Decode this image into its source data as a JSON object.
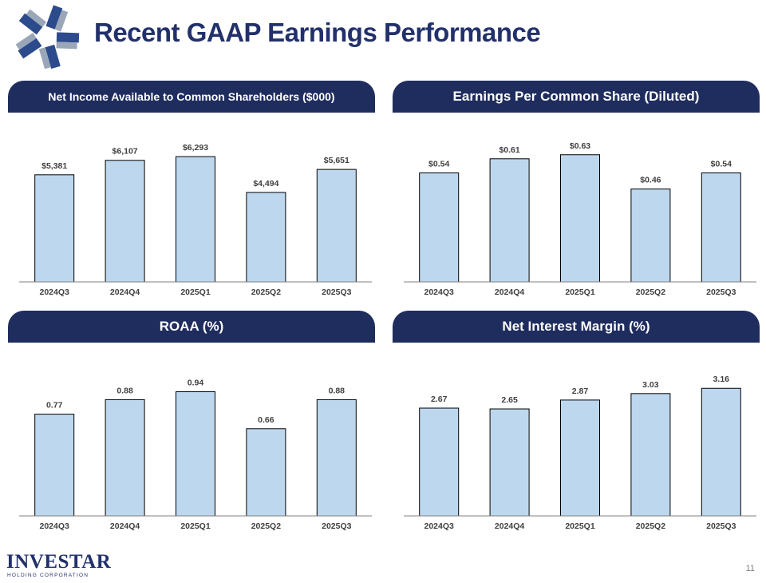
{
  "page": {
    "title": "Recent GAAP Earnings Performance",
    "page_number": "11",
    "brand": {
      "name": "INVESTAR",
      "subtitle": "HOLDING CORPORATION",
      "color": "#22306b"
    }
  },
  "colors": {
    "header_bg": "#1f2d5e",
    "bar_fill": "#bdd7ee",
    "title": "#22306b"
  },
  "chart_data": [
    {
      "type": "bar",
      "title": "Net Income Available to Common Shareholders ($000)",
      "categories": [
        "2024Q3",
        "2024Q4",
        "2025Q1",
        "2025Q2",
        "2025Q3"
      ],
      "values": [
        5381,
        6107,
        6293,
        4494,
        5651
      ],
      "value_labels": [
        "$5,381",
        "$6,107",
        "$6,293",
        "$4,494",
        "$5,651"
      ],
      "ylim": [
        0,
        7300
      ],
      "xlabel": "",
      "ylabel": ""
    },
    {
      "type": "bar",
      "title": "Earnings Per Common Share (Diluted)",
      "categories": [
        "2024Q3",
        "2024Q4",
        "2025Q1",
        "2025Q2",
        "2025Q3"
      ],
      "values": [
        0.54,
        0.61,
        0.63,
        0.46,
        0.54
      ],
      "value_labels": [
        "$0.54",
        "$0.61",
        "$0.63",
        "$0.46",
        "$0.54"
      ],
      "ylim": [
        0,
        0.72
      ],
      "xlabel": "",
      "ylabel": ""
    },
    {
      "type": "bar",
      "title": "ROAA (%)",
      "categories": [
        "2024Q3",
        "2024Q4",
        "2025Q1",
        "2025Q2",
        "2025Q3"
      ],
      "values": [
        0.77,
        0.88,
        0.94,
        0.66,
        0.88
      ],
      "value_labels": [
        "0.77",
        "0.88",
        "0.94",
        "0.66",
        "0.88"
      ],
      "ylim": [
        0,
        1.1
      ],
      "xlabel": "",
      "ylabel": ""
    },
    {
      "type": "bar",
      "title": "Net Interest Margin (%)",
      "categories": [
        "2024Q3",
        "2024Q4",
        "2025Q1",
        "2025Q2",
        "2025Q3"
      ],
      "values": [
        2.67,
        2.65,
        2.87,
        3.03,
        3.16
      ],
      "value_labels": [
        "2.67",
        "2.65",
        "2.87",
        "3.03",
        "3.16"
      ],
      "ylim": [
        0,
        3.6
      ],
      "xlabel": "",
      "ylabel": ""
    }
  ]
}
